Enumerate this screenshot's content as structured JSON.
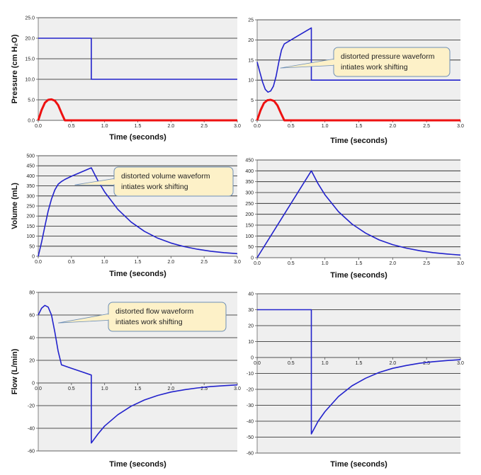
{
  "chart_data": [
    {
      "id": "p1",
      "type": "line",
      "xlabel": "Time (seconds)",
      "ylabel": "Pressure (cm H₂O)",
      "xlim": [
        0,
        3
      ],
      "ylim": [
        0,
        25
      ],
      "xticks": [
        "0.0",
        "0.5",
        "1.0",
        "1.5",
        "2.0",
        "2.5",
        "3.0"
      ],
      "yticks": [
        "0.0",
        "5.0",
        "10.0",
        "15.0",
        "20.0",
        "25.0"
      ],
      "grid": true,
      "series": [
        {
          "color": "#2222cc",
          "style": "step",
          "points": [
            [
              0,
              20
            ],
            [
              0.8,
              20
            ],
            [
              0.8,
              10
            ],
            [
              3,
              10
            ]
          ]
        },
        {
          "color": "#ee1111",
          "style": "thick",
          "points": [
            [
              0,
              0
            ],
            [
              0.05,
              2.5
            ],
            [
              0.1,
              4.3
            ],
            [
              0.15,
              5.0
            ],
            [
              0.2,
              5.1
            ],
            [
              0.25,
              4.8
            ],
            [
              0.3,
              3.7
            ],
            [
              0.35,
              1.8
            ],
            [
              0.4,
              0
            ],
            [
              3,
              0
            ]
          ]
        }
      ]
    },
    {
      "id": "p2",
      "type": "line",
      "xlabel": "Time (seconds)",
      "ylabel": "",
      "xlim": [
        0,
        3
      ],
      "ylim": [
        0,
        25
      ],
      "xticks": [
        "0.0",
        "0.5",
        "1.0",
        "1.5",
        "2.0",
        "2.5",
        "3.0"
      ],
      "yticks": [
        "0",
        "5",
        "10",
        "15",
        "20",
        "25"
      ],
      "grid": true,
      "callout": {
        "lines": [
          "distorted pressure waveform",
          "intiates work shifting"
        ],
        "point": [
          0.34,
          13
        ]
      },
      "series": [
        {
          "color": "#2222cc",
          "style": "normal",
          "points": [
            [
              0,
              14.5
            ],
            [
              0.04,
              12
            ],
            [
              0.08,
              9.5
            ],
            [
              0.12,
              7.7
            ],
            [
              0.16,
              7
            ],
            [
              0.2,
              7.3
            ],
            [
              0.24,
              8.5
            ],
            [
              0.28,
              11
            ],
            [
              0.32,
              14.5
            ],
            [
              0.36,
              17.5
            ],
            [
              0.4,
              19
            ],
            [
              0.6,
              21
            ],
            [
              0.8,
              23
            ],
            [
              0.8,
              10
            ],
            [
              3,
              10
            ]
          ]
        },
        {
          "color": "#ee1111",
          "style": "thick",
          "points": [
            [
              0,
              0
            ],
            [
              0.05,
              2.5
            ],
            [
              0.1,
              4.3
            ],
            [
              0.15,
              5.0
            ],
            [
              0.2,
              5.1
            ],
            [
              0.25,
              4.8
            ],
            [
              0.3,
              3.7
            ],
            [
              0.35,
              1.8
            ],
            [
              0.4,
              0
            ],
            [
              3,
              0
            ]
          ]
        }
      ]
    },
    {
      "id": "v1",
      "type": "line",
      "xlabel": "Time (seconds)",
      "ylabel": "Volume (mL)",
      "xlim": [
        0,
        3
      ],
      "ylim": [
        0,
        500
      ],
      "xticks": [
        "0.0",
        "0.5",
        "1.0",
        "1.5",
        "2.0",
        "2.5",
        "3.0"
      ],
      "yticks": [
        "0",
        "50",
        "100",
        "150",
        "200",
        "250",
        "300",
        "350",
        "400",
        "450",
        "500"
      ],
      "grid": true,
      "callout": {
        "lines": [
          "distorted volume waveform",
          "intiates work shifting"
        ],
        "point": [
          0.55,
          355
        ]
      },
      "series": [
        {
          "color": "#2222cc",
          "style": "normal",
          "points": [
            [
              0,
              0
            ],
            [
              0.05,
              70
            ],
            [
              0.1,
              150
            ],
            [
              0.15,
              225
            ],
            [
              0.2,
              285
            ],
            [
              0.25,
              330
            ],
            [
              0.3,
              358
            ],
            [
              0.35,
              372
            ],
            [
              0.4,
              382
            ],
            [
              0.5,
              398
            ],
            [
              0.6,
              412
            ],
            [
              0.7,
              426
            ],
            [
              0.8,
              440
            ],
            [
              0.9,
              375
            ],
            [
              1.0,
              320
            ],
            [
              1.2,
              233
            ],
            [
              1.4,
              170
            ],
            [
              1.6,
              124
            ],
            [
              1.8,
              90
            ],
            [
              2.0,
              66
            ],
            [
              2.2,
              48
            ],
            [
              2.4,
              35
            ],
            [
              2.6,
              25
            ],
            [
              2.8,
              18
            ],
            [
              3.0,
              13
            ]
          ]
        }
      ]
    },
    {
      "id": "v2",
      "type": "line",
      "xlabel": "Time (seconds)",
      "ylabel": "",
      "xlim": [
        0,
        3
      ],
      "ylim": [
        0,
        450
      ],
      "xticks": [
        "0.0",
        "0.5",
        "1.0",
        "1.5",
        "2.0",
        "2.5",
        "3.0"
      ],
      "yticks": [
        "0",
        "50",
        "100",
        "150",
        "200",
        "250",
        "300",
        "350",
        "400",
        "450"
      ],
      "grid": true,
      "series": [
        {
          "color": "#2222cc",
          "style": "normal",
          "points": [
            [
              0,
              0
            ],
            [
              0.8,
              400
            ],
            [
              0.9,
              340
            ],
            [
              1.0,
              290
            ],
            [
              1.2,
              212
            ],
            [
              1.4,
              155
            ],
            [
              1.6,
              113
            ],
            [
              1.8,
              82
            ],
            [
              2.0,
              60
            ],
            [
              2.2,
              44
            ],
            [
              2.4,
              32
            ],
            [
              2.6,
              23
            ],
            [
              2.8,
              17
            ],
            [
              3.0,
              12
            ]
          ]
        }
      ]
    },
    {
      "id": "f1",
      "type": "line",
      "xlabel": "Time (seconds)",
      "ylabel": "Flow (L/min)",
      "xlim": [
        0,
        3
      ],
      "ylim": [
        -60,
        80
      ],
      "xticks": [
        "0.0",
        "0.5",
        "1.0",
        "1.5",
        "2.0",
        "2.5",
        "3.0"
      ],
      "yticks": [
        "-60",
        "-40",
        "-20",
        "0",
        "20",
        "40",
        "60",
        "80"
      ],
      "xtick_at_zero": true,
      "grid": true,
      "callout": {
        "lines": [
          "distorted flow waveform",
          "intiates work shifting"
        ],
        "point": [
          0.3,
          53
        ]
      },
      "series": [
        {
          "color": "#2222cc",
          "style": "normal",
          "points": [
            [
              0,
              60
            ],
            [
              0.05,
              66
            ],
            [
              0.1,
              68.5
            ],
            [
              0.15,
              67
            ],
            [
              0.2,
              60
            ],
            [
              0.25,
              45
            ],
            [
              0.3,
              28
            ],
            [
              0.35,
              16
            ],
            [
              0.5,
              13
            ],
            [
              0.65,
              10
            ],
            [
              0.8,
              7
            ],
            [
              0.8,
              -53
            ],
            [
              0.9,
              -45
            ],
            [
              1.0,
              -38
            ],
            [
              1.2,
              -28
            ],
            [
              1.4,
              -20.5
            ],
            [
              1.6,
              -15
            ],
            [
              1.8,
              -11
            ],
            [
              2.0,
              -8
            ],
            [
              2.2,
              -6
            ],
            [
              2.4,
              -4.4
            ],
            [
              2.6,
              -3.2
            ],
            [
              2.8,
              -2.4
            ],
            [
              3.0,
              -1.7
            ]
          ]
        }
      ]
    },
    {
      "id": "f2",
      "type": "line",
      "xlabel": "Time (seconds)",
      "ylabel": "",
      "xlim": [
        0,
        3
      ],
      "ylim": [
        -60,
        40
      ],
      "xticks": [
        "0.0",
        "0.5",
        "1.0",
        "1.5",
        "2.0",
        "2.5",
        "3.0"
      ],
      "yticks": [
        "-60",
        "-50",
        "-40",
        "-30",
        "-20",
        "-10",
        "0",
        "10",
        "20",
        "30",
        "40"
      ],
      "xtick_at_zero": true,
      "grid": true,
      "series": [
        {
          "color": "#2222cc",
          "style": "normal",
          "points": [
            [
              0,
              30
            ],
            [
              0.8,
              30
            ],
            [
              0.8,
              -48
            ],
            [
              0.9,
              -40
            ],
            [
              1.0,
              -34
            ],
            [
              1.2,
              -24.5
            ],
            [
              1.4,
              -17.8
            ],
            [
              1.6,
              -13
            ],
            [
              1.8,
              -9.4
            ],
            [
              2.0,
              -6.8
            ],
            [
              2.2,
              -5
            ],
            [
              2.4,
              -3.6
            ],
            [
              2.6,
              -2.6
            ],
            [
              2.8,
              -1.9
            ],
            [
              3.0,
              -1.4
            ]
          ]
        }
      ]
    }
  ]
}
